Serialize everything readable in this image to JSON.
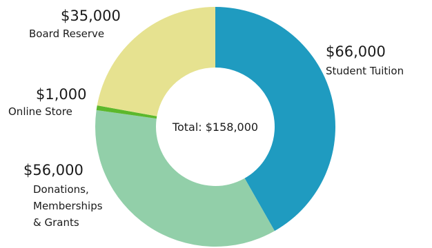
{
  "chart_data": {
    "type": "pie",
    "donut": true,
    "center_label": "Total: $158,000",
    "slices": [
      {
        "category": "Student Tuition",
        "label_lines": [
          "Student Tuition"
        ],
        "value": 66000,
        "value_label": "$66,000",
        "color": "#1f9bc0"
      },
      {
        "category": "Donations, Memberships & Grants",
        "label_lines": [
          "Donations,",
          "Memberships",
          "& Grants"
        ],
        "value": 56000,
        "value_label": "$56,000",
        "color": "#92cfa9"
      },
      {
        "category": "Online Store",
        "label_lines": [
          "Online Store"
        ],
        "value": 1000,
        "value_label": "$1,000",
        "color": "#5cb82c"
      },
      {
        "category": "Board Reserve",
        "label_lines": [
          "Board Reserve"
        ],
        "value": 35000,
        "value_label": "$35,000",
        "color": "#e6e290"
      }
    ]
  }
}
